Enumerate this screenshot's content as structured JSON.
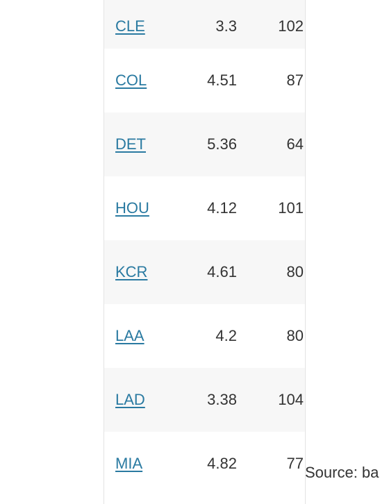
{
  "table": {
    "rows": [
      {
        "team": "CLE",
        "era": "3.3",
        "wins": "102"
      },
      {
        "team": "COL",
        "era": "4.51",
        "wins": "87"
      },
      {
        "team": "DET",
        "era": "5.36",
        "wins": "64"
      },
      {
        "team": "HOU",
        "era": "4.12",
        "wins": "101"
      },
      {
        "team": "KCR",
        "era": "4.61",
        "wins": "80"
      },
      {
        "team": "LAA",
        "era": "4.2",
        "wins": "80"
      },
      {
        "team": "LAD",
        "era": "3.38",
        "wins": "104"
      },
      {
        "team": "MIA",
        "era": "4.82",
        "wins": "77"
      }
    ]
  },
  "source_note": "Source: ba"
}
